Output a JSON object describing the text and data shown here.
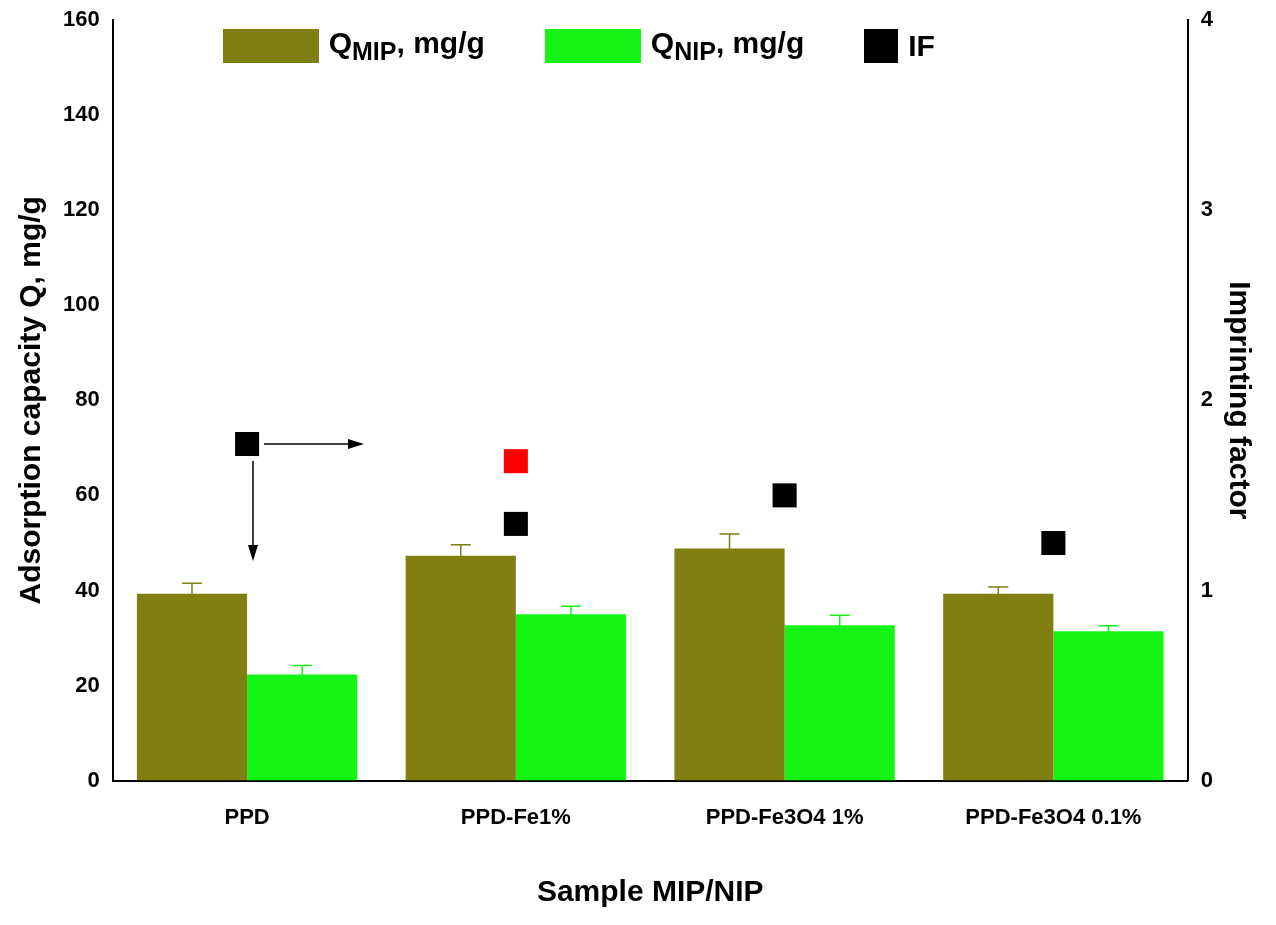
{
  "chart_data": {
    "type": "bar",
    "xlabel": "Sample MIP/NIP",
    "ylabel": "Adsorption capacity Q, mg/g",
    "y2label": "Imprinting factor",
    "categories": [
      "PPD",
      "PPD-Fe1%",
      "PPD-Fe3O4 1%",
      "PPD-Fe3O4 0.1%"
    ],
    "series": [
      {
        "name": "Q$_{MIP}$, mg/g",
        "color": "#7f7f12",
        "values": [
          39.3,
          47.3,
          48.8,
          39.3
        ],
        "errors": [
          2.2,
          2.3,
          3.1,
          1.4
        ]
      },
      {
        "name": "Q$_{NIP}$, mg/g",
        "color": "#14f514",
        "values": [
          22.3,
          35.0,
          32.7,
          31.4
        ],
        "errors": [
          1.9,
          1.7,
          2.1,
          1.2
        ]
      },
      {
        "name": "IF",
        "type": "scatter",
        "axis": "y2",
        "color": "#000000",
        "values": [
          1.77,
          1.35,
          1.5,
          1.25
        ]
      },
      {
        "type": "scatter",
        "axis": "y2",
        "color": "#ff0000",
        "values": [
          null,
          1.68,
          null,
          null
        ]
      }
    ],
    "ylim": [
      0,
      160
    ],
    "yticks": [
      0,
      20,
      40,
      60,
      80,
      100,
      120,
      140,
      160
    ],
    "y2lim": [
      0,
      4
    ],
    "y2ticks": [
      0,
      1,
      2,
      3,
      4
    ],
    "grid": false,
    "legend": "top",
    "marker": "square"
  }
}
